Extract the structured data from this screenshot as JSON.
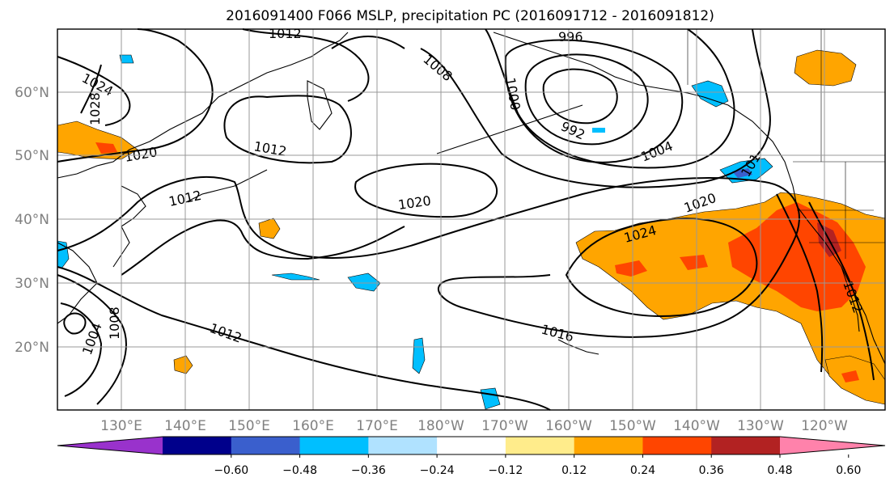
{
  "title": "2016091400 F066 MSLP, precipitation PC (2016091712 - 2016091812)",
  "lat_labels": [
    "60°N",
    "50°N",
    "40°N",
    "30°N",
    "20°N"
  ],
  "lon_labels": [
    "130°E",
    "140°E",
    "150°E",
    "160°E",
    "170°E",
    "180°W",
    "170°W",
    "160°W",
    "150°W",
    "140°W",
    "130°W",
    "120°W"
  ],
  "isobar_labels": [
    "1012",
    "996",
    "1024",
    "1008",
    "1028",
    "1000",
    "1012",
    "992",
    "1020",
    "1004",
    "1012",
    "1020",
    "1020",
    "1024",
    "1012",
    "1008",
    "1004",
    "1012",
    "1016",
    "101"
  ],
  "colorbar": {
    "colors": [
      "#9932cc",
      "#00008b",
      "#3a5fcd",
      "#00bfff",
      "#b0e2ff",
      "#ffffff",
      "#ffec8b",
      "#ffa500",
      "#ff4500",
      "#b22222",
      "#ff82ab"
    ],
    "tick_labels": [
      "−0.60",
      "−0.48",
      "−0.36",
      "−0.24",
      "−0.12",
      "0.12",
      "0.24",
      "0.36",
      "0.48",
      "0.60"
    ]
  }
}
